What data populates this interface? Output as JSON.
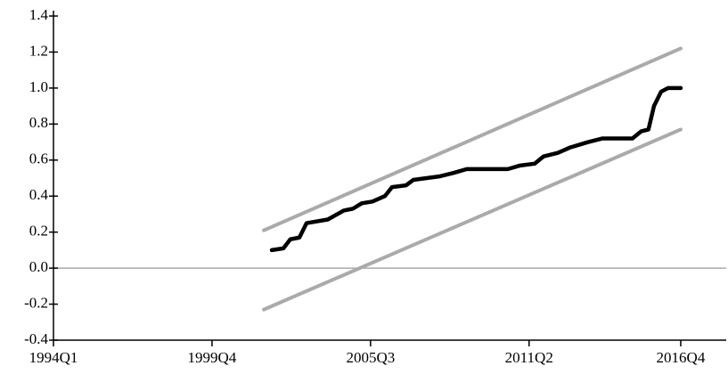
{
  "chart_data": {
    "type": "line",
    "series": [
      {
        "color": "#aaaaaa",
        "x": [
          2001.63,
          2016.75
        ],
        "values": [
          0.21,
          1.22
        ]
      },
      {
        "color": "#aaaaaa",
        "x": [
          2001.63,
          2016.75
        ],
        "values": [
          -0.23,
          0.77
        ]
      },
      {
        "color": "#000000",
        "x": [
          2001.92,
          2002.34,
          2002.59,
          2002.92,
          2003.18,
          2003.95,
          2004.53,
          2004.86,
          2005.18,
          2005.57,
          2006.02,
          2006.28,
          2006.79,
          2007.05,
          2008.02,
          2008.54,
          2008.99,
          2010.48,
          2010.93,
          2011.45,
          2011.77,
          2012.29,
          2012.74,
          2013.39,
          2013.9,
          2015.0,
          2015.32,
          2015.58,
          2015.78,
          2016.04,
          2016.29,
          2016.75
        ],
        "values": [
          0.1,
          0.11,
          0.16,
          0.17,
          0.25,
          0.27,
          0.32,
          0.33,
          0.36,
          0.37,
          0.4,
          0.45,
          0.46,
          0.49,
          0.51,
          0.53,
          0.55,
          0.55,
          0.57,
          0.58,
          0.62,
          0.64,
          0.67,
          0.7,
          0.72,
          0.72,
          0.76,
          0.77,
          0.9,
          0.98,
          1.0,
          1.0
        ]
      }
    ],
    "reference_line": 0,
    "xlim": [
      1994.0,
      2018.4
    ],
    "xticks": [
      {
        "value": 1994.0,
        "label": "1994Q1"
      },
      {
        "value": 1999.75,
        "label": "1999Q4"
      },
      {
        "value": 2005.5,
        "label": "2005Q3"
      },
      {
        "value": 2011.25,
        "label": "2011Q2"
      },
      {
        "value": 2016.75,
        "label": "2016Q4"
      }
    ],
    "ylim": [
      -0.4,
      1.4
    ],
    "yticks": [
      1.4,
      1.2,
      {
        "value": 1,
        "label": "1.0"
      },
      0.8,
      0.6,
      0.4,
      0.2,
      {
        "value": 0,
        "label": "0.0"
      },
      -0.2,
      -0.4
    ]
  }
}
